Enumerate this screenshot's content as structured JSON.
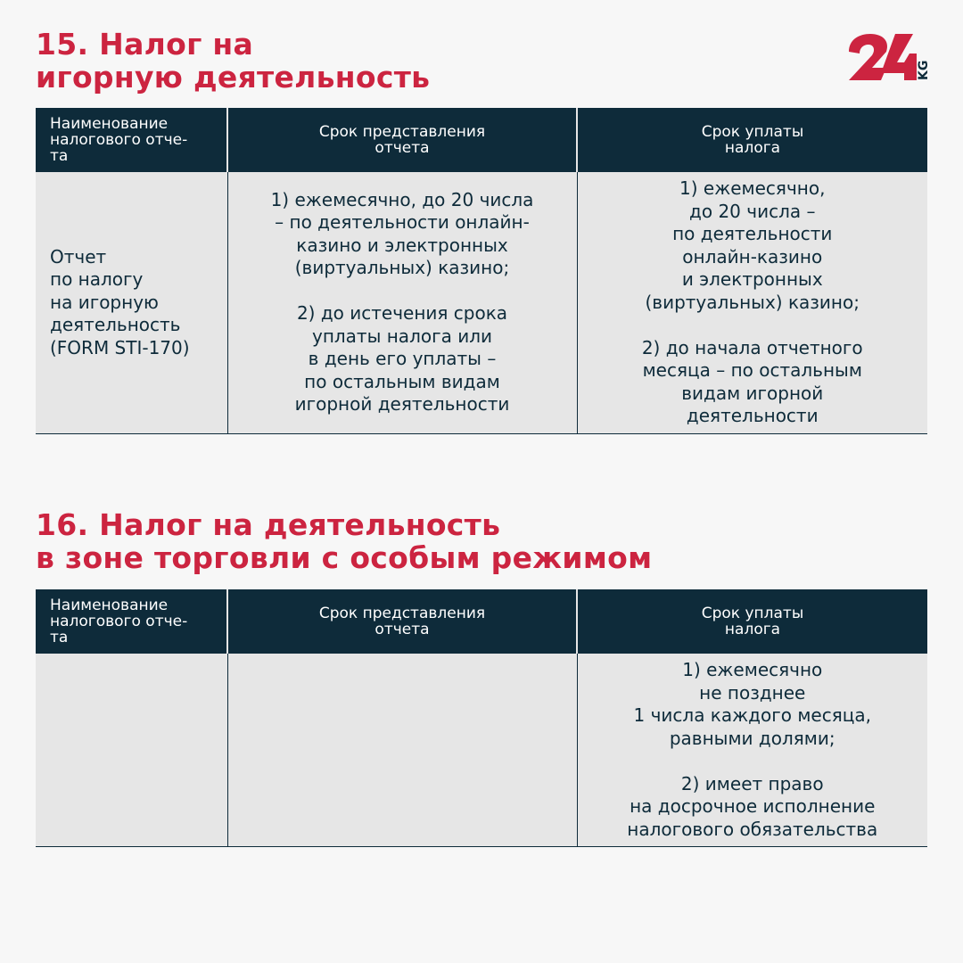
{
  "brand": {
    "logo_text": "24",
    "logo_suffix": "KG",
    "accent": "#cc2440",
    "dark": "#0e2b3a"
  },
  "section1": {
    "title": "15. Налог на\nигорную деятельность",
    "headers": [
      "Наименование\nналогового отче-\nта",
      "Срок представления\nотчета",
      "Срок уплаты\nналога"
    ],
    "row": [
      "Отчет\nпо налогу\nна игорную\nдеятельность\n(FORM STI-170)",
      "1) ежемесячно, до 20 числа\n– по деятельности онлайн-\nказино и электронных\n(виртуальных) казино;\n\n2) до истечения срока\nуплаты налога или\nв день его уплаты –\nпо остальным видам\nигорной деятельности",
      "1) ежемесячно,\nдо 20 числа –\nпо деятельности\nонлайн-казино\nи электронных\n(виртуальных) казино;\n\n2) до начала отчетного\nмесяца – по остальным\nвидам игорной\nдеятельности"
    ]
  },
  "section2": {
    "title": "16. Налог на деятельность\nв зоне торговли с особым режимом",
    "headers": [
      "Наименование\nналогового отче-\nта",
      "Срок представления\nотчета",
      "Срок уплаты\nналога"
    ],
    "row": [
      "",
      "",
      "1) ежемесячно\nне позднее\n1 числа каждого месяца,\nравными долями;\n\n2) имеет право\nна досрочное исполнение\nналогового обязательства"
    ]
  }
}
